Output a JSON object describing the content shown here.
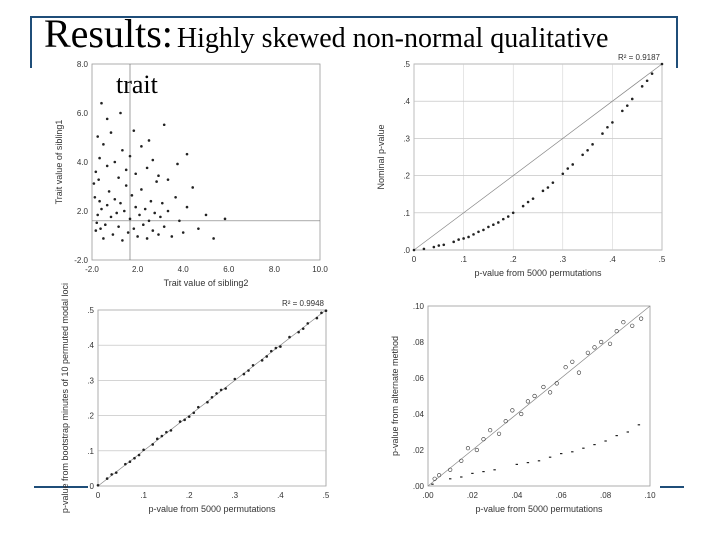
{
  "slide": {
    "title_main": "Results:",
    "title_rest": "Highly skewed non-normal qualitative",
    "title_line2": "trait",
    "accent_color": "#1f4e79"
  },
  "chart_data": [
    {
      "type": "scatter",
      "xlabel": "Trait value of sibling2",
      "ylabel": "Trait value of sibling1",
      "xlim": [
        -2.0,
        10.0
      ],
      "ylim": [
        -2.0,
        8.0
      ],
      "xticks": [
        "-2.0",
        "2.0",
        "4.0",
        "6.0",
        "8.0",
        "10.0"
      ],
      "yticks": [
        "8.0",
        "6.0",
        "4.0",
        "2.0",
        "-2.0"
      ],
      "r2": "",
      "series": [
        {
          "points": [
            [
              -1.8,
              -0.5
            ],
            [
              -1.7,
              0.3
            ],
            [
              -1.6,
              1.0
            ],
            [
              -1.5,
              0.6
            ],
            [
              -1.4,
              -0.9
            ],
            [
              -1.3,
              -0.2
            ],
            [
              -1.2,
              0.8
            ],
            [
              -1.1,
              1.5
            ],
            [
              -1.0,
              0.2
            ],
            [
              -0.9,
              -0.7
            ],
            [
              -0.8,
              1.1
            ],
            [
              -0.7,
              0.4
            ],
            [
              -0.6,
              -0.3
            ],
            [
              -0.5,
              0.9
            ],
            [
              -0.4,
              -1.0
            ],
            [
              -0.3,
              0.5
            ],
            [
              -0.2,
              1.8
            ],
            [
              -0.1,
              -0.6
            ],
            [
              0.0,
              0.1
            ],
            [
              0.1,
              1.3
            ],
            [
              0.2,
              -0.4
            ],
            [
              0.3,
              0.7
            ],
            [
              0.4,
              -0.8
            ],
            [
              0.5,
              0.3
            ],
            [
              0.6,
              1.6
            ],
            [
              0.7,
              -0.2
            ],
            [
              0.8,
              0.6
            ],
            [
              0.9,
              -0.9
            ],
            [
              1.0,
              0.0
            ],
            [
              1.1,
              1.0
            ],
            [
              1.2,
              -0.5
            ],
            [
              1.3,
              0.4
            ],
            [
              1.4,
              2.0
            ],
            [
              1.5,
              -0.7
            ],
            [
              1.6,
              0.2
            ],
            [
              1.7,
              0.9
            ],
            [
              1.8,
              -0.3
            ],
            [
              2.0,
              0.5
            ],
            [
              2.2,
              -0.8
            ],
            [
              2.4,
              1.2
            ],
            [
              2.6,
              0.0
            ],
            [
              2.8,
              -0.6
            ],
            [
              3.0,
              0.7
            ],
            [
              3.3,
              1.7
            ],
            [
              3.6,
              -0.4
            ],
            [
              4.0,
              0.3
            ],
            [
              4.4,
              -0.9
            ],
            [
              5.0,
              0.1
            ],
            [
              -1.8,
              2.5
            ],
            [
              -1.6,
              3.2
            ],
            [
              -1.4,
              3.9
            ],
            [
              -1.2,
              2.8
            ],
            [
              -1.0,
              4.5
            ],
            [
              -0.8,
              3.0
            ],
            [
              -0.6,
              2.2
            ],
            [
              -0.4,
              3.6
            ],
            [
              -0.2,
              2.6
            ],
            [
              0.0,
              3.3
            ],
            [
              0.3,
              2.4
            ],
            [
              0.6,
              3.8
            ],
            [
              0.9,
              2.7
            ],
            [
              1.2,
              3.1
            ],
            [
              1.5,
              2.3
            ],
            [
              -1.5,
              6.0
            ],
            [
              -1.2,
              5.2
            ],
            [
              -0.5,
              5.5
            ],
            [
              0.2,
              4.6
            ],
            [
              1.8,
              4.9
            ],
            [
              2.5,
              2.9
            ],
            [
              3.0,
              3.4
            ],
            [
              2.0,
              2.1
            ],
            [
              1.0,
              4.1
            ],
            [
              -1.7,
              4.3
            ],
            [
              -1.9,
              1.9
            ],
            [
              -1.85,
              1.2
            ],
            [
              -1.75,
              -0.1
            ],
            [
              -1.65,
              2.1
            ],
            [
              -1.55,
              -0.4
            ]
          ]
        }
      ]
    },
    {
      "type": "scatter",
      "xlabel": "p-value from 5000 permutations",
      "ylabel": "Nominal p-value",
      "xlim": [
        0,
        0.5
      ],
      "ylim": [
        0,
        0.5
      ],
      "xticks": [
        "0",
        ".1",
        ".2",
        ".3",
        ".4",
        ".5"
      ],
      "yticks": [
        ".5",
        ".4",
        ".3",
        ".2",
        ".1",
        ".0"
      ],
      "r2": "R² = 0.9187",
      "series": [
        {
          "points": [
            [
              0.0,
              0.0
            ],
            [
              0.02,
              0.003
            ],
            [
              0.04,
              0.008
            ],
            [
              0.06,
              0.014
            ],
            [
              0.08,
              0.022
            ],
            [
              0.1,
              0.031
            ],
            [
              0.12,
              0.042
            ],
            [
              0.14,
              0.054
            ],
            [
              0.16,
              0.068
            ],
            [
              0.18,
              0.083
            ],
            [
              0.2,
              0.1
            ],
            [
              0.22,
              0.118
            ],
            [
              0.24,
              0.138
            ],
            [
              0.26,
              0.159
            ],
            [
              0.28,
              0.181
            ],
            [
              0.3,
              0.205
            ],
            [
              0.32,
              0.23
            ],
            [
              0.34,
              0.256
            ],
            [
              0.36,
              0.284
            ],
            [
              0.38,
              0.313
            ],
            [
              0.4,
              0.343
            ],
            [
              0.42,
              0.374
            ],
            [
              0.44,
              0.406
            ],
            [
              0.46,
              0.44
            ],
            [
              0.48,
              0.474
            ],
            [
              0.5,
              0.5
            ],
            [
              0.05,
              0.012
            ],
            [
              0.11,
              0.035
            ],
            [
              0.15,
              0.062
            ],
            [
              0.19,
              0.09
            ],
            [
              0.23,
              0.129
            ],
            [
              0.27,
              0.168
            ],
            [
              0.31,
              0.219
            ],
            [
              0.35,
              0.268
            ],
            [
              0.39,
              0.33
            ],
            [
              0.43,
              0.388
            ],
            [
              0.47,
              0.455
            ],
            [
              0.09,
              0.028
            ],
            [
              0.13,
              0.049
            ],
            [
              0.17,
              0.074
            ]
          ]
        }
      ]
    },
    {
      "type": "scatter",
      "xlabel": "p-value from 5000 permutations",
      "ylabel": "p-value from bootstrap minutes of 10 permuted modal loci",
      "xlim": [
        0,
        0.5
      ],
      "ylim": [
        0,
        0.5
      ],
      "xticks": [
        "0",
        ".1",
        ".2",
        ".3",
        ".4",
        ".5"
      ],
      "yticks": [
        ".5",
        ".4",
        ".3",
        ".2",
        ".1",
        "0"
      ],
      "r2": "R² = 0.9948",
      "series": [
        {
          "points": [
            [
              0.0,
              0.002
            ],
            [
              0.02,
              0.021
            ],
            [
              0.04,
              0.038
            ],
            [
              0.06,
              0.062
            ],
            [
              0.08,
              0.079
            ],
            [
              0.1,
              0.103
            ],
            [
              0.12,
              0.118
            ],
            [
              0.14,
              0.142
            ],
            [
              0.16,
              0.158
            ],
            [
              0.18,
              0.183
            ],
            [
              0.2,
              0.197
            ],
            [
              0.22,
              0.224
            ],
            [
              0.24,
              0.238
            ],
            [
              0.26,
              0.263
            ],
            [
              0.28,
              0.277
            ],
            [
              0.3,
              0.304
            ],
            [
              0.32,
              0.318
            ],
            [
              0.34,
              0.343
            ],
            [
              0.36,
              0.357
            ],
            [
              0.38,
              0.383
            ],
            [
              0.4,
              0.396
            ],
            [
              0.42,
              0.423
            ],
            [
              0.44,
              0.437
            ],
            [
              0.46,
              0.462
            ],
            [
              0.48,
              0.477
            ],
            [
              0.5,
              0.498
            ],
            [
              0.03,
              0.033
            ],
            [
              0.09,
              0.088
            ],
            [
              0.15,
              0.153
            ],
            [
              0.21,
              0.208
            ],
            [
              0.27,
              0.273
            ],
            [
              0.33,
              0.328
            ],
            [
              0.39,
              0.392
            ],
            [
              0.45,
              0.447
            ],
            [
              0.49,
              0.492
            ],
            [
              0.07,
              0.069
            ],
            [
              0.13,
              0.134
            ],
            [
              0.19,
              0.188
            ],
            [
              0.25,
              0.252
            ],
            [
              0.37,
              0.368
            ]
          ]
        }
      ]
    },
    {
      "type": "scatter",
      "xlabel": "p-value from 5000 permutations",
      "ylabel": "p-value from alternate method",
      "xlim": [
        0,
        0.1
      ],
      "ylim": [
        0,
        0.1
      ],
      "xticks": [
        ".00",
        ".02",
        ".04",
        ".06",
        ".08",
        ".10"
      ],
      "yticks": [
        ".10",
        ".08",
        ".06",
        ".04",
        ".02",
        ".00"
      ],
      "r2": "",
      "series": [
        {
          "points": [
            [
              0.003,
              0.004
            ],
            [
              0.01,
              0.009
            ],
            [
              0.018,
              0.021
            ],
            [
              0.022,
              0.02
            ],
            [
              0.028,
              0.031
            ],
            [
              0.032,
              0.029
            ],
            [
              0.038,
              0.042
            ],
            [
              0.042,
              0.04
            ],
            [
              0.048,
              0.05
            ],
            [
              0.052,
              0.055
            ],
            [
              0.058,
              0.057
            ],
            [
              0.062,
              0.066
            ],
            [
              0.068,
              0.063
            ],
            [
              0.072,
              0.074
            ],
            [
              0.078,
              0.08
            ],
            [
              0.082,
              0.079
            ],
            [
              0.088,
              0.091
            ],
            [
              0.092,
              0.089
            ],
            [
              0.096,
              0.093
            ],
            [
              0.015,
              0.014
            ],
            [
              0.035,
              0.036
            ],
            [
              0.055,
              0.052
            ],
            [
              0.075,
              0.077
            ],
            [
              0.085,
              0.086
            ],
            [
              0.045,
              0.047
            ],
            [
              0.025,
              0.026
            ],
            [
              0.065,
              0.069
            ],
            [
              0.005,
              0.006
            ]
          ]
        },
        {
          "points": [
            [
              0.002,
              0.001
            ],
            [
              0.01,
              0.004
            ],
            [
              0.02,
              0.007
            ],
            [
              0.03,
              0.009
            ],
            [
              0.04,
              0.012
            ],
            [
              0.05,
              0.014
            ],
            [
              0.06,
              0.018
            ],
            [
              0.07,
              0.021
            ],
            [
              0.08,
              0.025
            ],
            [
              0.09,
              0.03
            ],
            [
              0.095,
              0.034
            ],
            [
              0.025,
              0.008
            ],
            [
              0.045,
              0.013
            ],
            [
              0.065,
              0.019
            ],
            [
              0.085,
              0.028
            ],
            [
              0.015,
              0.005
            ],
            [
              0.055,
              0.016
            ],
            [
              0.075,
              0.023
            ]
          ]
        }
      ]
    }
  ]
}
